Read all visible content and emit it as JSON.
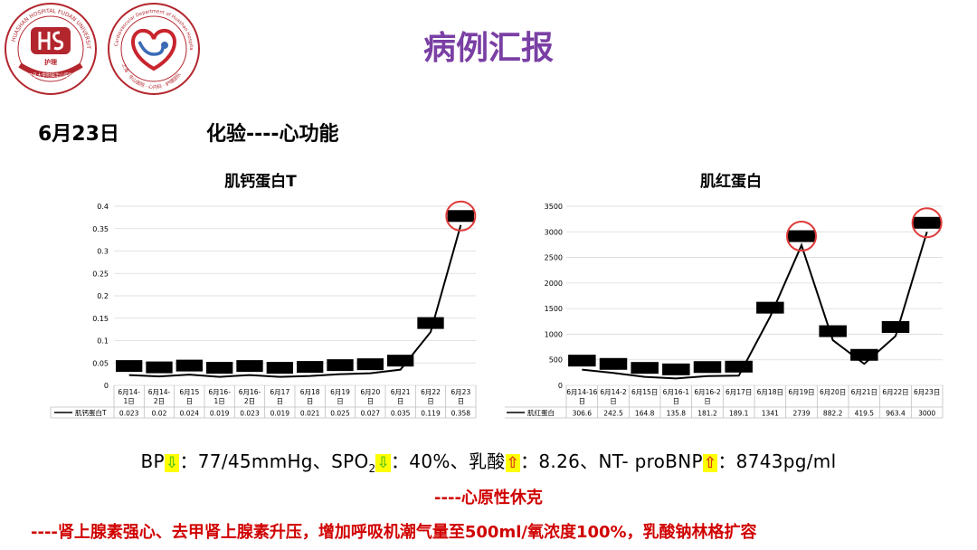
{
  "header": {
    "title": "病例汇报",
    "logo1_text": "HUASHAN HOSPITAL FUDAN UNIVERSITY",
    "logo1_cn": "复旦大学附属华山医院",
    "logo1_small": "护理",
    "logo2_text": "Cardiovascular Department of Huashan Hospital",
    "logo2_cn": "上海 · 华山医院 · 心内科 · 护理团队"
  },
  "date": "6月23日",
  "subtitle": "化验----心功能",
  "colors": {
    "title": "#7a3fa4",
    "emphasis": "#d00000",
    "down_arrow": "#5dc41a",
    "up_arrow": "#d9381e",
    "highlight": "#ffff00",
    "circle": "#e03a3a"
  },
  "chart_data": [
    {
      "type": "line",
      "title": "肌钙蛋白T",
      "categories": [
        "6月14-1日",
        "6月14-2日",
        "6月15日",
        "6月16-1日",
        "6月16-2日",
        "6月17日",
        "6月18日",
        "6月19日",
        "6月20日",
        "6月21日",
        "6月22日",
        "6月23日"
      ],
      "category_lines": [
        [
          "6月14-",
          "1日"
        ],
        [
          "6月14-",
          "2日"
        ],
        [
          "6月15",
          "日"
        ],
        [
          "6月16-",
          "1日"
        ],
        [
          "6月16-",
          "2日"
        ],
        [
          "6月17",
          "日"
        ],
        [
          "6月18",
          "日"
        ],
        [
          "6月19",
          "日"
        ],
        [
          "6月20",
          "日"
        ],
        [
          "6月21",
          "日"
        ],
        [
          "6月22",
          "日"
        ],
        [
          "6月23",
          "日"
        ]
      ],
      "series": [
        {
          "name": "肌钙蛋白T",
          "values": [
            0.023,
            0.02,
            0.024,
            0.019,
            0.023,
            0.019,
            0.021,
            0.025,
            0.027,
            0.035,
            0.119,
            0.358
          ]
        }
      ],
      "value_labels": [
        "0.023",
        "0.02",
        "0.024",
        "0.019",
        "0.023",
        "0.019",
        "0.021",
        "0.025",
        "0.027",
        "0.035",
        "0.119",
        "0.358"
      ],
      "ylim": [
        0,
        0.4
      ],
      "yticks": [
        0,
        0.05,
        0.1,
        0.15,
        0.2,
        0.25,
        0.3,
        0.35,
        0.4
      ],
      "ytick_labels": [
        "0",
        "0.05",
        "0.1",
        "0.15",
        "0.2",
        "0.25",
        "0.3",
        "0.35",
        "0.4"
      ],
      "circled": [
        11
      ],
      "grid": true,
      "legend": "data-table"
    },
    {
      "type": "line",
      "title": "肌红蛋白",
      "categories": [
        "6月14-16日",
        "6月14-2日",
        "6月15日",
        "6月16-1日",
        "6月16-2日",
        "6月17日",
        "6月18日",
        "6月19日",
        "6月20日",
        "6月21日",
        "6月22日",
        "6月23日"
      ],
      "category_lines": [
        [
          "6月14-16",
          "日"
        ],
        [
          "6月14-2",
          "日"
        ],
        [
          "6月15日",
          ""
        ],
        [
          "6月16-1",
          "日"
        ],
        [
          "6月16-2",
          "日"
        ],
        [
          "6月17日",
          ""
        ],
        [
          "6月18日",
          ""
        ],
        [
          "6月19日",
          ""
        ],
        [
          "6月20日",
          ""
        ],
        [
          "6月21日",
          ""
        ],
        [
          "6月22日",
          ""
        ],
        [
          "6月23日",
          ""
        ]
      ],
      "series": [
        {
          "name": "肌红蛋白",
          "values": [
            306.6,
            242.5,
            164.8,
            135.8,
            181.2,
            189.1,
            1341,
            2739,
            882.2,
            419.5,
            963.4,
            3000
          ]
        }
      ],
      "value_labels": [
        "306.6",
        "242.5",
        "164.8",
        "135.8",
        "181.2",
        "189.1",
        "1341",
        "2739",
        "882.2",
        "419.5",
        "963.4",
        "3000"
      ],
      "ylim": [
        0,
        3500
      ],
      "yticks": [
        0,
        500,
        1000,
        1500,
        2000,
        2500,
        3000,
        3500
      ],
      "ytick_labels": [
        "0",
        "500",
        "1000",
        "1500",
        "2000",
        "2500",
        "3000",
        "3500"
      ],
      "circled": [
        7,
        11
      ],
      "grid": true,
      "legend": "data-table"
    }
  ],
  "vitals": {
    "bp_label": "BP",
    "bp_value": "：77/45mmHg、",
    "spo2_label": "SPO",
    "spo2_sub": "2",
    "spo2_value": "：40%、",
    "lactate_label": "乳酸",
    "lactate_value": "：8.26、",
    "bnp_label": "NT- proBNP",
    "bnp_value": "：8743pg/ml",
    "down_arrow": "⇩",
    "up_arrow": "⇧"
  },
  "conclusion": "----心原性休克",
  "treatment": "----肾上腺素强心、去甲肾上腺素升压，增加呼吸机潮气量至500ml/氧浓度100%，乳酸钠林格扩容"
}
